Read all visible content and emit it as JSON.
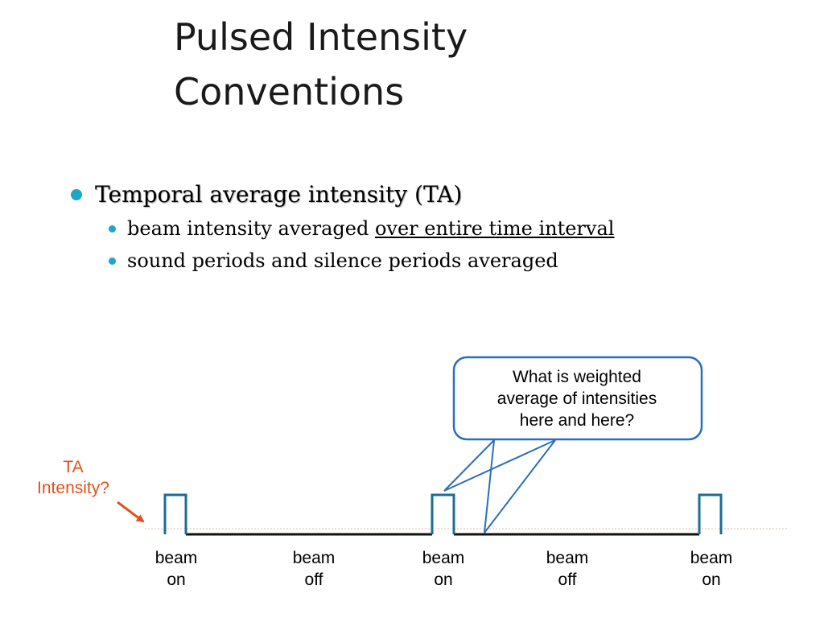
{
  "title": {
    "line1": "Pulsed Intensity",
    "line2": "Conventions"
  },
  "bullets": {
    "main": "Temporal average intensity (TA)",
    "sub1_prefix": "beam intensity averaged ",
    "sub1_underlined": "over entire time interval",
    "sub2": "sound periods and silence periods averaged"
  },
  "callout": {
    "line1": "What is weighted",
    "line2": "average of intensities",
    "line3": "here and here?"
  },
  "ta_label": {
    "line1": "TA",
    "line2": "Intensity?"
  },
  "beams": [
    {
      "line1": "beam",
      "line2": "on"
    },
    {
      "line1": "beam",
      "line2": "off"
    },
    {
      "line1": "beam",
      "line2": "on"
    },
    {
      "line1": "beam",
      "line2": "off"
    },
    {
      "line1": "beam",
      "line2": "on"
    }
  ],
  "colors": {
    "accent": "#1fa7c8",
    "waveform": "#1b6e90",
    "callout_border": "#2a6fb5",
    "ta_label": "#e2501c"
  }
}
